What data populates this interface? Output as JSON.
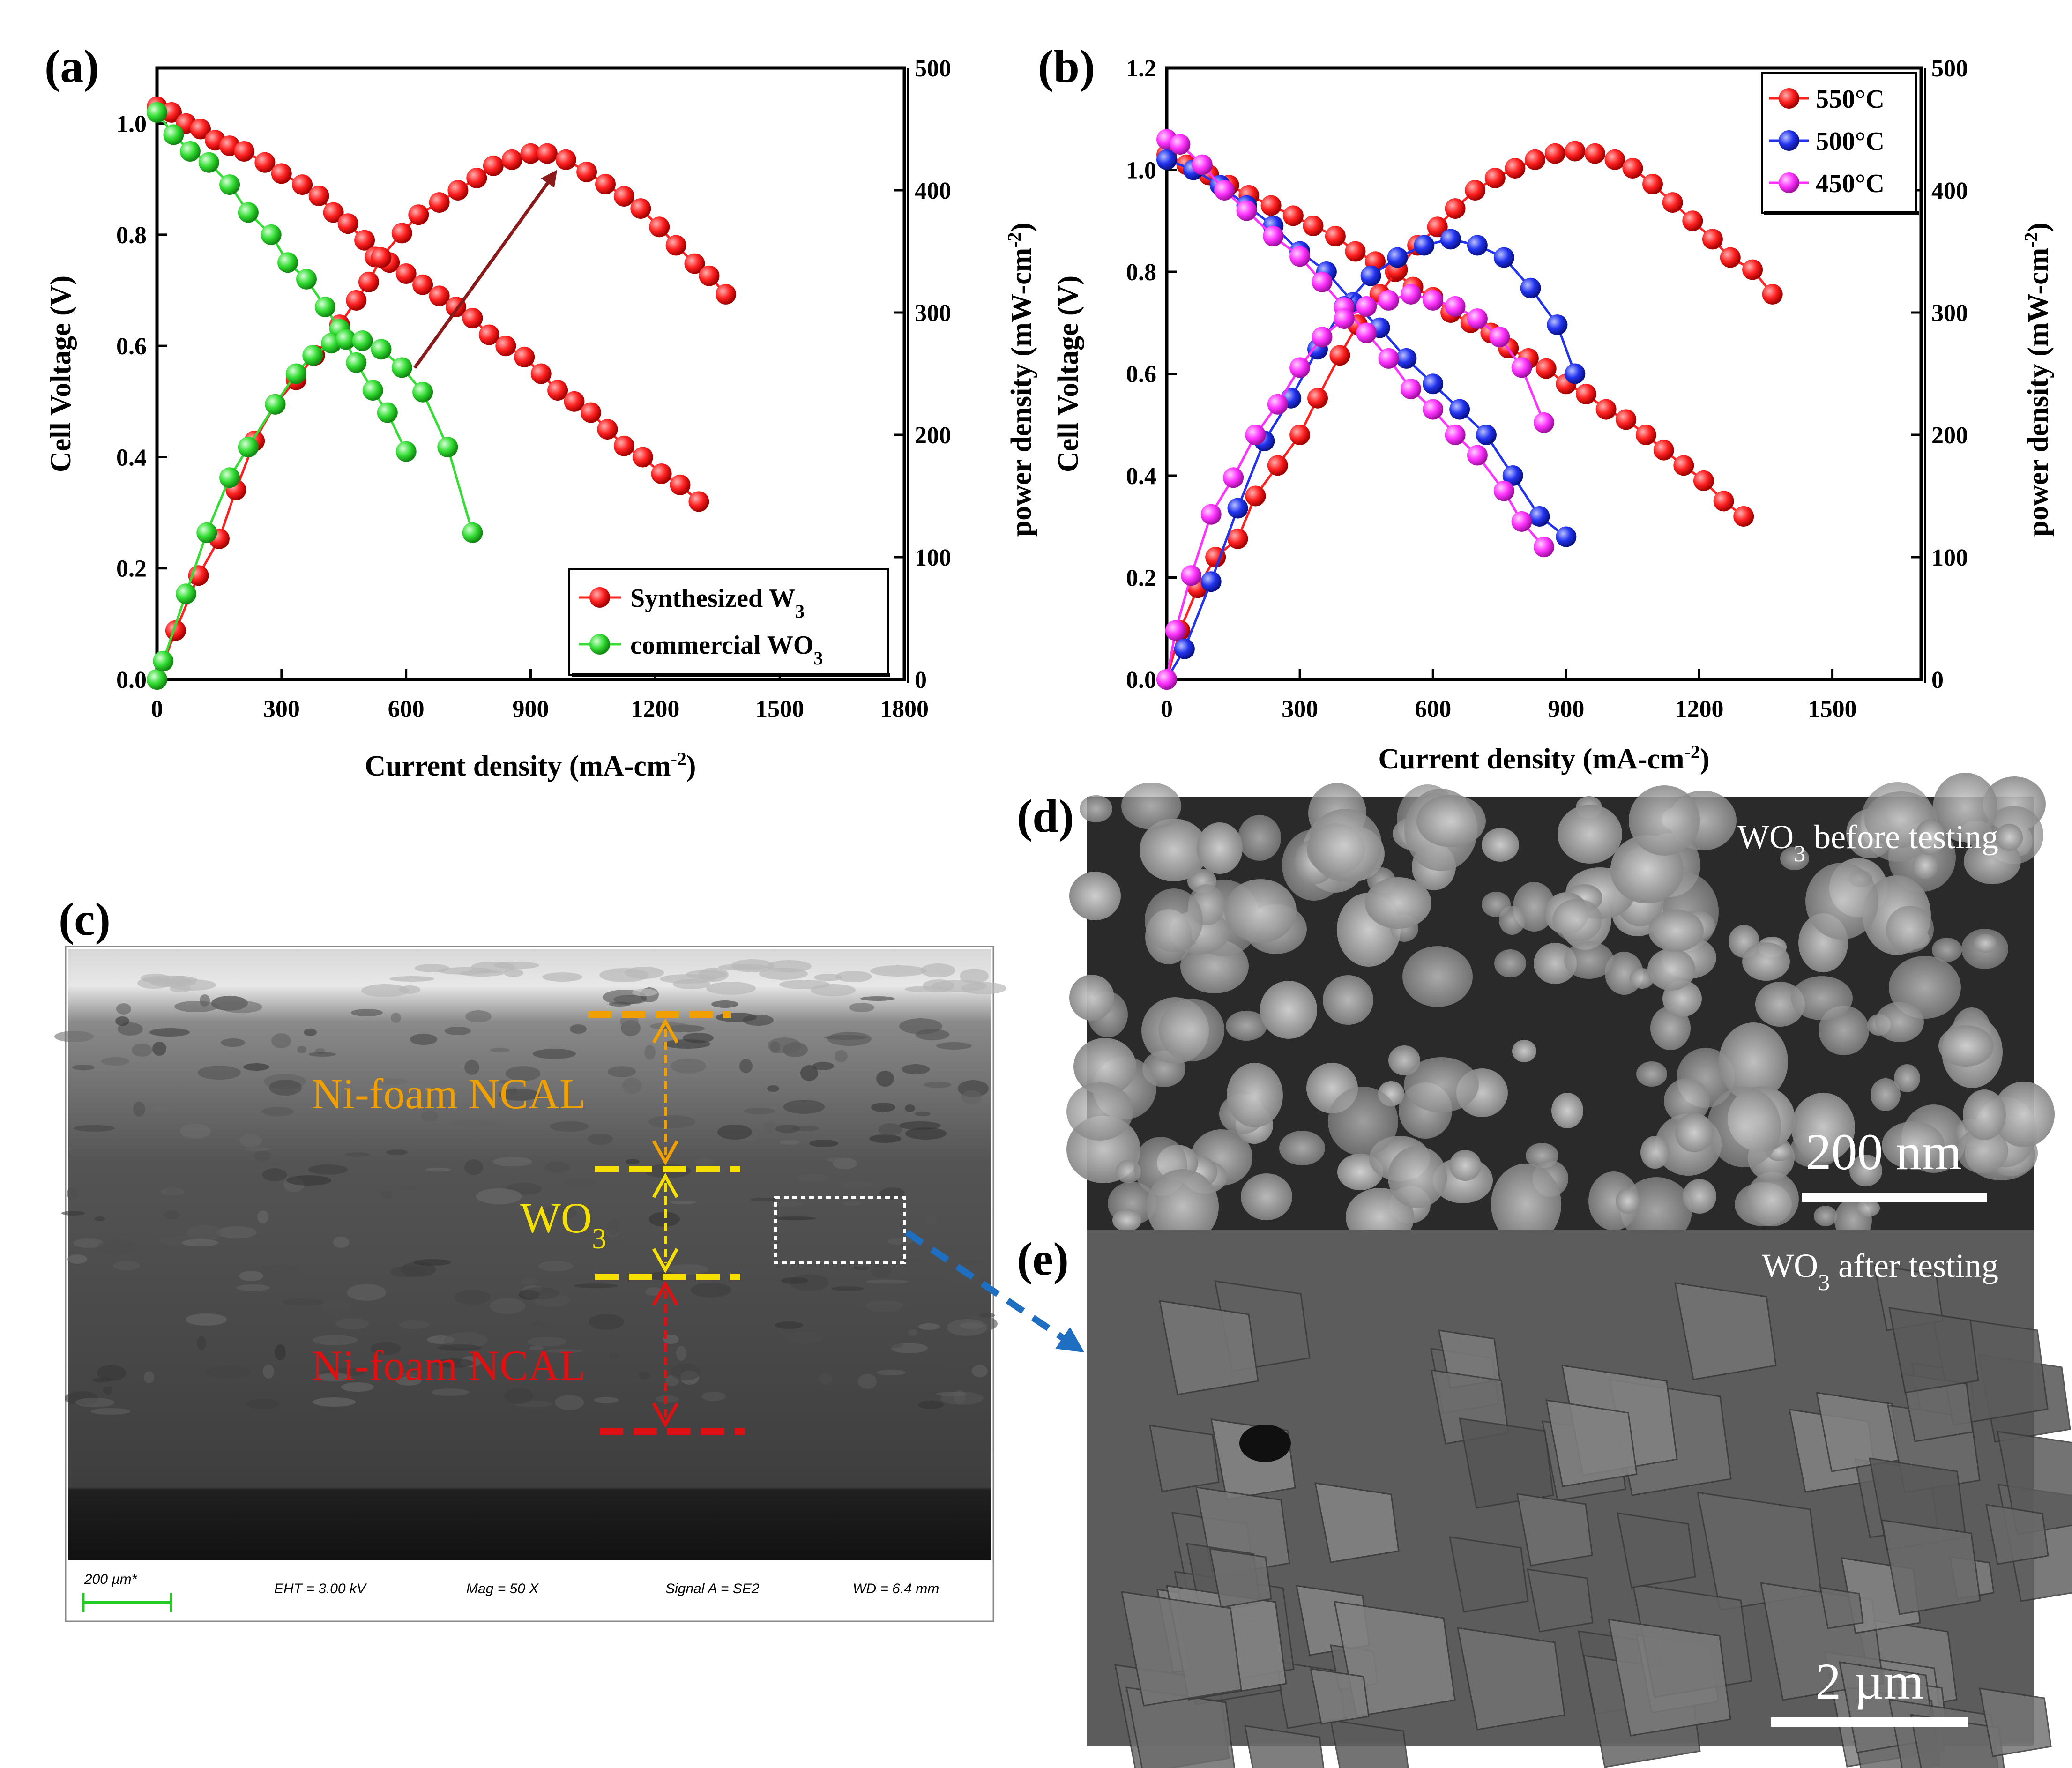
{
  "panels": {
    "a": "(a)",
    "b": "(b)",
    "c": "(c)",
    "d": "(d)",
    "e": "(e)"
  },
  "colors": {
    "red": "#ff2020",
    "green": "#33dd33",
    "blue": "#2233ee",
    "magenta": "#ff33ff",
    "arrow": "#8b1a1a",
    "orange": "#f0a000",
    "yellow": "#f5e000",
    "sem_red": "#e01010"
  },
  "chart_data": [
    {
      "type": "line",
      "panel": "(a)",
      "xlabel": "Current density (mA-cm",
      "xlabel_sup": "-2",
      "ylabel": "Cell Voltage (V)",
      "y2label": "power density (mW-cm",
      "y2label_sup": "-2",
      "xlim": [
        0,
        1800
      ],
      "ylim": [
        0,
        1.1
      ],
      "y2lim": [
        0,
        500
      ],
      "xticks": [
        "0",
        "300",
        "600",
        "900",
        "1200",
        "1500",
        "1800"
      ],
      "yticks": [
        "0.0",
        "0.2",
        "0.4",
        "0.6",
        "0.8",
        "1.0"
      ],
      "y2ticks": [
        "0",
        "100",
        "200",
        "300",
        "400",
        "500"
      ],
      "legend_position": "bottom-right",
      "series": [
        {
          "name": "Synthesized W",
          "name_sub": "3",
          "color_key": "red",
          "kind": "voltage",
          "x": [
            0,
            35,
            70,
            105,
            140,
            175,
            210,
            260,
            300,
            350,
            390,
            425,
            460,
            500,
            525,
            560,
            600,
            640,
            680,
            720,
            760,
            800,
            840,
            885,
            925,
            965,
            1005,
            1045,
            1085,
            1125,
            1170,
            1215,
            1260,
            1305
          ],
          "y": [
            1.03,
            1.02,
            1.0,
            0.99,
            0.97,
            0.96,
            0.95,
            0.93,
            0.91,
            0.89,
            0.87,
            0.84,
            0.82,
            0.79,
            0.76,
            0.75,
            0.73,
            0.71,
            0.69,
            0.67,
            0.65,
            0.62,
            0.6,
            0.58,
            0.55,
            0.52,
            0.5,
            0.48,
            0.45,
            0.42,
            0.4,
            0.37,
            0.35,
            0.32
          ]
        },
        {
          "name": "Synthesized W3 power",
          "color_key": "red",
          "kind": "power",
          "x": [
            0,
            45,
            100,
            150,
            190,
            235,
            285,
            335,
            380,
            440,
            480,
            510,
            540,
            590,
            630,
            680,
            725,
            770,
            810,
            855,
            900,
            940,
            985,
            1035,
            1080,
            1125,
            1165,
            1210,
            1250,
            1295,
            1330,
            1370
          ],
          "y": [
            0,
            40,
            85,
            115,
            155,
            195,
            225,
            245,
            265,
            290,
            310,
            325,
            345,
            365,
            380,
            390,
            400,
            410,
            420,
            425,
            430,
            430,
            425,
            415,
            405,
            395,
            385,
            370,
            355,
            340,
            330,
            315
          ]
        },
        {
          "name": "commercial WO",
          "name_sub": "3",
          "color_key": "green",
          "kind": "voltage",
          "x": [
            0,
            40,
            80,
            125,
            175,
            220,
            275,
            315,
            360,
            405,
            440,
            480,
            520,
            555,
            600
          ],
          "y": [
            1.02,
            0.98,
            0.95,
            0.93,
            0.89,
            0.84,
            0.8,
            0.75,
            0.72,
            0.67,
            0.63,
            0.57,
            0.52,
            0.48,
            0.41
          ]
        },
        {
          "name": "commercial WO3 power",
          "color_key": "green",
          "kind": "power",
          "x": [
            0,
            15,
            70,
            120,
            175,
            220,
            285,
            335,
            375,
            420,
            455,
            495,
            540,
            590,
            640,
            700,
            760
          ],
          "y": [
            0,
            15,
            70,
            120,
            165,
            190,
            225,
            250,
            265,
            275,
            278,
            277,
            270,
            255,
            235,
            190,
            120
          ]
        }
      ]
    },
    {
      "type": "line",
      "panel": "(b)",
      "xlabel": "Current density (mA-cm",
      "xlabel_sup": "-2",
      "ylabel": "Cell Voltage (V)",
      "y2label": "power density (mW-cm",
      "y2label_sup": "-2",
      "xlim": [
        0,
        1700
      ],
      "ylim": [
        0,
        1.2
      ],
      "y2lim": [
        0,
        500
      ],
      "xticks": [
        "0",
        "300",
        "600",
        "900",
        "1200",
        "1500"
      ],
      "yticks": [
        "0.0",
        "0.2",
        "0.4",
        "0.6",
        "0.8",
        "1.0",
        "1.2"
      ],
      "y2ticks": [
        "0",
        "100",
        "200",
        "300",
        "400",
        "500"
      ],
      "legend_position": "top-right",
      "series": [
        {
          "name": "550°C",
          "color_key": "red",
          "kind": "voltage",
          "x": [
            0,
            45,
            95,
            140,
            185,
            235,
            285,
            330,
            380,
            425,
            470,
            515,
            555,
            600,
            640,
            685,
            730,
            770,
            815,
            855,
            900,
            945,
            990,
            1035,
            1080,
            1120,
            1165,
            1210,
            1255,
            1300
          ],
          "y": [
            1.03,
            1.01,
            0.99,
            0.97,
            0.95,
            0.93,
            0.91,
            0.89,
            0.87,
            0.84,
            0.82,
            0.8,
            0.77,
            0.75,
            0.72,
            0.7,
            0.68,
            0.65,
            0.63,
            0.61,
            0.58,
            0.56,
            0.53,
            0.51,
            0.48,
            0.45,
            0.42,
            0.39,
            0.35,
            0.32
          ]
        },
        {
          "name": "550°C power",
          "color_key": "red",
          "kind": "power",
          "x": [
            0,
            30,
            70,
            110,
            160,
            200,
            250,
            300,
            340,
            390,
            430,
            480,
            520,
            565,
            610,
            650,
            695,
            740,
            785,
            830,
            875,
            920,
            965,
            1010,
            1050,
            1095,
            1140,
            1185,
            1230,
            1270,
            1320,
            1365
          ],
          "y": [
            0,
            40,
            75,
            100,
            115,
            150,
            175,
            200,
            230,
            265,
            290,
            315,
            335,
            355,
            370,
            385,
            400,
            410,
            418,
            425,
            430,
            432,
            430,
            425,
            418,
            405,
            390,
            375,
            360,
            345,
            335,
            315
          ]
        },
        {
          "name": "500°C",
          "color_key": "blue",
          "kind": "voltage",
          "x": [
            0,
            60,
            120,
            180,
            240,
            300,
            360,
            420,
            480,
            540,
            600,
            660,
            720,
            780,
            840,
            900
          ],
          "y": [
            1.02,
            1.0,
            0.97,
            0.93,
            0.89,
            0.84,
            0.8,
            0.74,
            0.69,
            0.63,
            0.58,
            0.53,
            0.48,
            0.4,
            0.32,
            0.28
          ]
        },
        {
          "name": "500°C power",
          "color_key": "blue",
          "kind": "power",
          "x": [
            0,
            40,
            100,
            160,
            220,
            280,
            340,
            400,
            460,
            520,
            580,
            640,
            700,
            760,
            820,
            880,
            920
          ],
          "y": [
            0,
            25,
            80,
            140,
            195,
            230,
            270,
            305,
            330,
            345,
            355,
            360,
            355,
            345,
            320,
            290,
            250
          ]
        },
        {
          "name": "450°C",
          "color_key": "magenta",
          "kind": "voltage",
          "x": [
            0,
            30,
            80,
            130,
            180,
            240,
            300,
            350,
            400,
            450,
            500,
            550,
            600,
            650,
            700,
            760,
            800,
            850
          ],
          "y": [
            1.06,
            1.05,
            1.01,
            0.96,
            0.92,
            0.87,
            0.83,
            0.78,
            0.73,
            0.68,
            0.63,
            0.57,
            0.53,
            0.48,
            0.44,
            0.37,
            0.31,
            0.26
          ]
        },
        {
          "name": "450°C power",
          "color_key": "magenta",
          "kind": "power",
          "x": [
            0,
            20,
            55,
            100,
            150,
            200,
            250,
            300,
            350,
            400,
            450,
            500,
            550,
            600,
            650,
            700,
            750,
            800,
            850
          ],
          "y": [
            0,
            40,
            85,
            135,
            165,
            200,
            225,
            255,
            280,
            295,
            305,
            310,
            315,
            310,
            305,
            295,
            280,
            255,
            210
          ]
        }
      ]
    }
  ],
  "sem_c": {
    "layers": [
      "Ni-foam NCAL",
      "WO",
      "Ni-foam NCAL"
    ],
    "wo_sub": "3",
    "footer": {
      "scale": "200 µm*",
      "eht": "EHT =  3.00 kV",
      "mag": "Mag =      50 X",
      "signal": "Signal A = SE2",
      "wd": "WD =  6.4 mm"
    }
  },
  "sem_d": {
    "caption": "WO",
    "caption_sub": "3",
    "caption_rest": " before testing",
    "scale": "200 nm"
  },
  "sem_e": {
    "caption": "WO",
    "caption_sub": "3",
    "caption_rest": " after testing",
    "scale": "2 µm"
  }
}
